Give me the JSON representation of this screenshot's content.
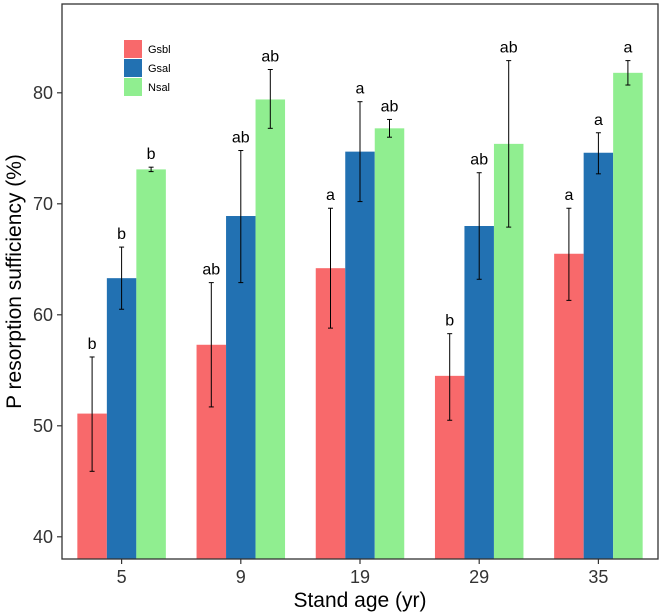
{
  "chart_data": {
    "type": "bar",
    "title": "",
    "xlabel": "Stand age (yr)",
    "ylabel": "P resorption sufficiency (%)",
    "ylim": [
      38,
      88
    ],
    "yticks": [
      40,
      50,
      60,
      70,
      80
    ],
    "categories": [
      "5",
      "9",
      "19",
      "29",
      "35"
    ],
    "grid": false,
    "legend_position": "top-left",
    "series": [
      {
        "name": "Gsbl",
        "color": "#F8696B",
        "values": [
          51.1,
          57.3,
          64.2,
          54.5,
          65.5
        ],
        "err_low": [
          45.9,
          51.7,
          58.8,
          50.5,
          61.3
        ],
        "err_high": [
          56.2,
          62.9,
          69.6,
          58.3,
          69.6
        ],
        "labels": [
          "b",
          "ab",
          "a",
          "b",
          "a"
        ]
      },
      {
        "name": "Gsal",
        "color": "#2271B2",
        "values": [
          63.3,
          68.9,
          74.7,
          68.0,
          74.6
        ],
        "err_low": [
          60.5,
          62.9,
          70.2,
          63.2,
          72.7
        ],
        "err_high": [
          66.1,
          74.8,
          79.2,
          72.8,
          76.4
        ],
        "labels": [
          "b",
          "ab",
          "a",
          "ab",
          "a"
        ]
      },
      {
        "name": "Nsal",
        "color": "#90EE90",
        "values": [
          73.1,
          79.4,
          76.8,
          75.4,
          81.8
        ],
        "err_low": [
          72.9,
          76.8,
          76.0,
          67.9,
          80.7
        ],
        "err_high": [
          73.3,
          82.1,
          77.6,
          82.9,
          82.9
        ],
        "labels": [
          "b",
          "ab",
          "ab",
          "ab",
          "a"
        ]
      }
    ]
  }
}
